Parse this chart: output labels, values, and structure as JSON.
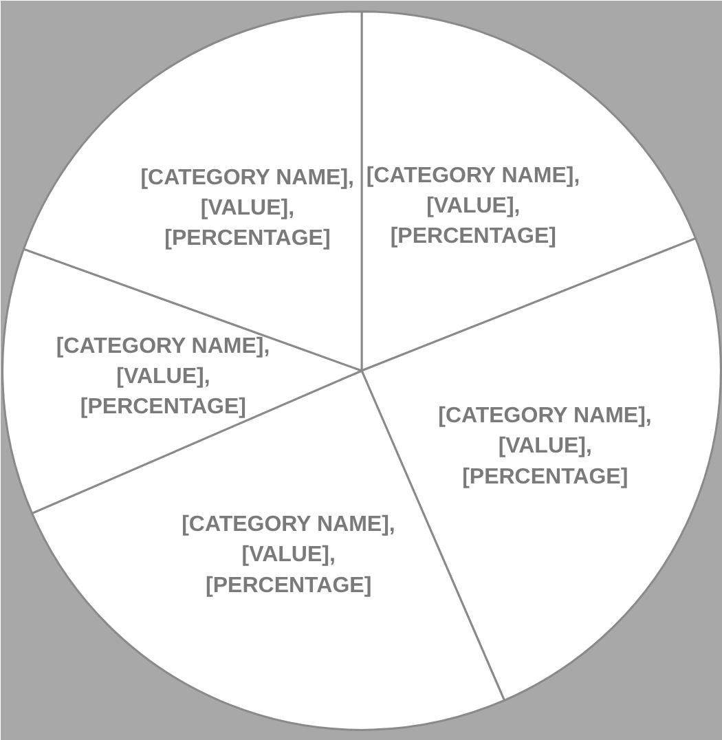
{
  "chart_data": {
    "type": "pie",
    "categories": [
      "[CATEGORY NAME],\n[VALUE],\n[PERCENTAGE]",
      "[CATEGORY NAME],\n[VALUE],\n[PERCENTAGE]",
      "[CATEGORY NAME],\n[VALUE],\n[PERCENTAGE]",
      "[CATEGORY NAME],\n[VALUE],\n[PERCENTAGE]",
      "[CATEGORY NAME],\n[VALUE],\n[PERCENTAGE]"
    ],
    "values": [
      19,
      24.5,
      25,
      12,
      19.5
    ],
    "colors": [
      "#ffffff",
      "#ffffff",
      "#ffffff",
      "#ffffff",
      "#ffffff"
    ]
  }
}
